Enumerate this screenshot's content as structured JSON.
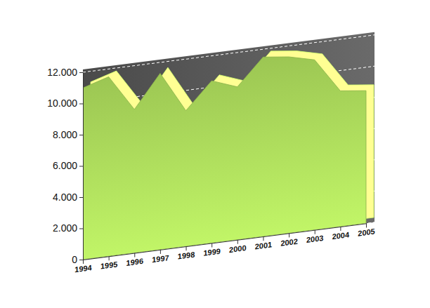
{
  "chart_data": {
    "type": "area",
    "categories": [
      "1994",
      "1995",
      "1996",
      "1997",
      "1998",
      "1999",
      "2000",
      "2001",
      "2002",
      "2003",
      "2004",
      "2005"
    ],
    "values": [
      11000,
      11500,
      9200,
      11300,
      8700,
      10400,
      9800,
      11500,
      11300,
      10900,
      8700,
      8500
    ],
    "color": "#9cc653",
    "ylim": [
      0,
      12000
    ],
    "yticks": [
      0,
      {
        "value": 2000,
        "label": "2.000"
      },
      {
        "value": 4000,
        "label": "4.000"
      },
      {
        "value": 6000,
        "label": "6.000"
      },
      {
        "value": 8000,
        "label": "8.000"
      },
      {
        "value": 10000,
        "label": "10.000"
      },
      {
        "value": 12000,
        "label": "12.000"
      }
    ],
    "grid": true
  }
}
